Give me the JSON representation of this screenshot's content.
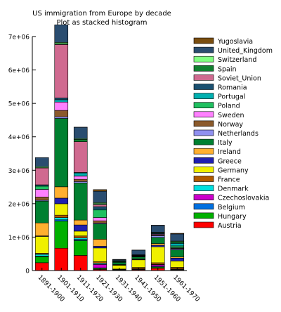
{
  "chart_data": {
    "type": "bar",
    "stacked": true,
    "title": "US immigration from Europe by decade",
    "subtitle": "Plot as stacked histogram",
    "xlabel": "",
    "ylabel": "",
    "ylim": [
      0,
      7000000
    ],
    "yticks": [
      0,
      1000000,
      2000000,
      3000000,
      4000000,
      5000000,
      6000000,
      7000000
    ],
    "ytick_labels": [
      "0",
      "1e+06",
      "2e+06",
      "3e+06",
      "4e+06",
      "5e+06",
      "6e+06",
      "7e+06"
    ],
    "grid": false,
    "legend_position": "right",
    "legend_order": "reverse",
    "categories": [
      "1891-1900",
      "1901-1910",
      "1911-1920",
      "1921-1930",
      "1931-1940",
      "1941-1950",
      "1951-1960",
      "1961-1970"
    ],
    "series": [
      {
        "name": "Austria",
        "color": "#ff0000",
        "values": [
          234000,
          668000,
          453000,
          33000,
          4000,
          24000,
          67000,
          20000
        ]
      },
      {
        "name": "Hungary",
        "color": "#00b000",
        "values": [
          181000,
          809000,
          443000,
          31000,
          7000,
          4000,
          37000,
          5000
        ]
      },
      {
        "name": "Belgium",
        "color": "#0070e0",
        "values": [
          19000,
          41000,
          33000,
          16000,
          5000,
          13000,
          19000,
          10000
        ]
      },
      {
        "name": "Czechoslovakia",
        "color": "#cc00cc",
        "values": [
          0,
          0,
          3000,
          102000,
          14000,
          8000,
          47000,
          5000
        ]
      },
      {
        "name": "Denmark",
        "color": "#00e0e0",
        "values": [
          51000,
          66000,
          42000,
          32000,
          2000,
          5000,
          11000,
          10000
        ]
      },
      {
        "name": "France",
        "color": "#b05a00",
        "values": [
          31000,
          73000,
          61000,
          50000,
          13000,
          39000,
          51000,
          45000
        ]
      },
      {
        "name": "Germany",
        "color": "#f0f000",
        "values": [
          505000,
          341000,
          144000,
          412000,
          114000,
          227000,
          478000,
          191000
        ]
      },
      {
        "name": "Greece",
        "color": "#2020b0",
        "values": [
          16000,
          168000,
          185000,
          51000,
          9000,
          8000,
          47000,
          86000
        ]
      },
      {
        "name": "Ireland",
        "color": "#ffb030",
        "values": [
          388000,
          339000,
          146000,
          211000,
          11000,
          20000,
          48000,
          33000
        ]
      },
      {
        "name": "Italy",
        "color": "#008030",
        "values": [
          652000,
          2046000,
          1110000,
          456000,
          68000,
          58000,
          185000,
          214000
        ]
      },
      {
        "name": "Netherlands",
        "color": "#9090f0",
        "values": [
          27000,
          48000,
          43000,
          26000,
          7000,
          14000,
          53000,
          31000
        ]
      },
      {
        "name": "Norway",
        "color": "#8b5a2b",
        "values": [
          96000,
          191000,
          66000,
          68000,
          4000,
          10000,
          23000,
          16000
        ]
      },
      {
        "name": "Sweden",
        "color": "#ff80ff",
        "values": [
          227000,
          250000,
          95000,
          97000,
          4000,
          11000,
          21000,
          17000
        ]
      },
      {
        "name": "Poland",
        "color": "#20c060",
        "values": [
          97000,
          0,
          5000,
          228000,
          17000,
          8000,
          10000,
          54000
        ]
      },
      {
        "name": "Portugal",
        "color": "#00b0b0",
        "values": [
          28000,
          70000,
          90000,
          30000,
          3000,
          8000,
          20000,
          76000
        ]
      },
      {
        "name": "Romania",
        "color": "#1a5070",
        "values": [
          12000,
          54000,
          14000,
          68000,
          3000,
          1000,
          2000,
          3000
        ]
      },
      {
        "name": "Soviet_Union",
        "color": "#d06a90",
        "values": [
          505000,
          1597000,
          921000,
          62000,
          1000,
          1000,
          1000,
          2000
        ]
      },
      {
        "name": "Spain",
        "color": "#108030",
        "values": [
          8000,
          28000,
          69000,
          29000,
          4000,
          3000,
          8000,
          44000
        ]
      },
      {
        "name": "Switzerland",
        "color": "#80ff80",
        "values": [
          31000,
          35000,
          23000,
          30000,
          6000,
          10000,
          17000,
          19000
        ]
      },
      {
        "name": "United_Kingdom",
        "color": "#2a4d70",
        "values": [
          271000,
          526000,
          341000,
          340000,
          32000,
          139000,
          203000,
          214000
        ]
      },
      {
        "name": "Yugoslavia",
        "color": "#7a4e10",
        "values": [
          0,
          0,
          1000,
          49000,
          6000,
          2000,
          9000,
          19000
        ]
      }
    ]
  }
}
